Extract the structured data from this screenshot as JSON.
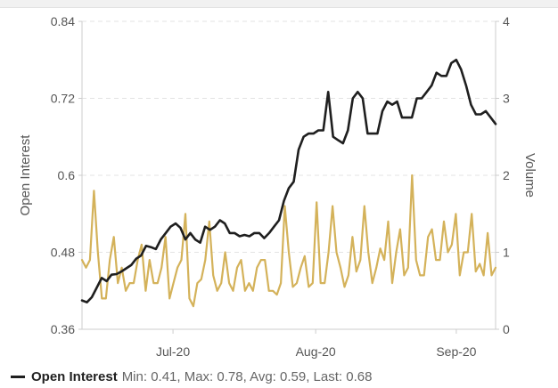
{
  "chart_data": {
    "type": "line",
    "x_ticks": [
      "Jul-20",
      "Aug-20",
      "Sep-20"
    ],
    "y_left": {
      "label": "Open Interest",
      "ticks": [
        "0.84",
        "0.72",
        "0.6",
        "0.48",
        "0.36"
      ],
      "range": [
        0.36,
        0.84
      ]
    },
    "y_right": {
      "label": "Volume",
      "ticks": [
        "4",
        "3",
        "2",
        "1",
        "0"
      ],
      "range": [
        0,
        4
      ]
    },
    "grid": "horizontal dashed",
    "series": [
      {
        "name": "Open Interest",
        "axis": "left",
        "color": "#1f1f1f",
        "values": [
          0.405,
          0.402,
          0.41,
          0.425,
          0.44,
          0.435,
          0.445,
          0.446,
          0.45,
          0.455,
          0.46,
          0.47,
          0.475,
          0.49,
          0.488,
          0.485,
          0.5,
          0.51,
          0.52,
          0.525,
          0.518,
          0.5,
          0.51,
          0.5,
          0.495,
          0.52,
          0.515,
          0.52,
          0.53,
          0.525,
          0.51,
          0.51,
          0.505,
          0.507,
          0.505,
          0.51,
          0.51,
          0.502,
          0.51,
          0.52,
          0.53,
          0.56,
          0.58,
          0.59,
          0.64,
          0.66,
          0.665,
          0.665,
          0.67,
          0.67,
          0.73,
          0.66,
          0.655,
          0.65,
          0.67,
          0.72,
          0.73,
          0.72,
          0.665,
          0.665,
          0.665,
          0.7,
          0.715,
          0.71,
          0.715,
          0.69,
          0.69,
          0.69,
          0.72,
          0.72,
          0.73,
          0.74,
          0.76,
          0.755,
          0.755,
          0.775,
          0.78,
          0.765,
          0.74,
          0.71,
          0.695,
          0.695,
          0.7,
          0.69,
          0.68
        ]
      },
      {
        "name": "Volume",
        "axis": "right",
        "color": "#d4b25a",
        "values": [
          0.9,
          0.8,
          0.9,
          1.8,
          1.0,
          0.4,
          0.4,
          0.9,
          1.2,
          0.6,
          0.8,
          0.5,
          0.6,
          0.6,
          0.9,
          1.1,
          0.5,
          0.9,
          0.6,
          0.6,
          0.8,
          1.2,
          0.4,
          0.6,
          0.8,
          0.9,
          1.5,
          0.4,
          0.3,
          0.6,
          0.65,
          0.9,
          1.4,
          0.7,
          0.5,
          0.6,
          1.0,
          0.6,
          0.5,
          0.8,
          0.9,
          0.5,
          0.6,
          0.5,
          0.8,
          0.9,
          0.9,
          0.5,
          0.5,
          0.45,
          0.6,
          1.6,
          1.0,
          0.55,
          0.6,
          0.8,
          0.95,
          0.55,
          0.6,
          1.65,
          0.6,
          0.6,
          1.0,
          1.6,
          1.0,
          0.8,
          0.55,
          0.7,
          1.2,
          0.75,
          0.9,
          1.6,
          1.0,
          0.6,
          0.8,
          1.05,
          0.9,
          1.4,
          0.6,
          1.0,
          1.3,
          0.7,
          0.8,
          2.0,
          0.9,
          0.7,
          0.7,
          1.2,
          1.3,
          0.9,
          0.9,
          1.4,
          1.0,
          1.1,
          1.5,
          0.7,
          1.0,
          1.0,
          1.5,
          0.75,
          0.85,
          0.7,
          1.25,
          0.7,
          0.8
        ]
      }
    ]
  },
  "legend": {
    "name": "Open Interest",
    "stats": "Min: 0.41, Max: 0.78, Avg: 0.59, Last: 0.68"
  }
}
